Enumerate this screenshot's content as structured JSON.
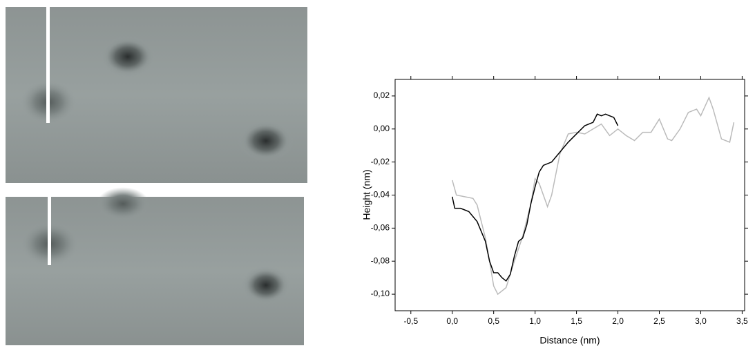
{
  "chart_data": {
    "type": "line",
    "xlabel": "Distance (nm)",
    "ylabel": "Height (nm)",
    "xlim": [
      -0.69,
      3.53
    ],
    "ylim": [
      -0.11,
      0.03
    ],
    "xticks": [
      {
        "value": -0.5,
        "label": "-0,5"
      },
      {
        "value": 0,
        "label": "0,0"
      },
      {
        "value": 0.5,
        "label": "0,5"
      },
      {
        "value": 1,
        "label": "1,0"
      },
      {
        "value": 1.5,
        "label": "1,5"
      },
      {
        "value": 2,
        "label": "2,0"
      },
      {
        "value": 2.5,
        "label": "2,5"
      },
      {
        "value": 3,
        "label": "3,0"
      },
      {
        "value": 3.5,
        "label": "3,5"
      }
    ],
    "yticks": [
      {
        "value": 0.02,
        "label": "0,02"
      },
      {
        "value": 0,
        "label": "0,00"
      },
      {
        "value": -0.02,
        "label": "-0,02"
      },
      {
        "value": -0.04,
        "label": "-0,04"
      },
      {
        "value": -0.06,
        "label": "-0,06"
      },
      {
        "value": -0.08,
        "label": "-0,08"
      },
      {
        "value": -0.1,
        "label": "-0,10"
      }
    ],
    "series": [
      {
        "color": "#bbbbbb",
        "x": [
          0,
          0.05,
          0.15,
          0.25,
          0.3,
          0.4,
          0.45,
          0.5,
          0.55,
          0.65,
          0.75,
          0.85,
          0.95,
          1.0,
          1.05,
          1.15,
          1.2,
          1.3,
          1.4,
          1.5,
          1.6,
          1.7,
          1.8,
          1.9,
          2.0,
          2.1,
          2.2,
          2.3,
          2.4,
          2.5,
          2.6,
          2.65,
          2.75,
          2.85,
          2.95,
          3.0,
          3.1,
          3.15,
          3.25,
          3.35,
          3.4
        ],
        "values": [
          -0.031,
          -0.04,
          -0.041,
          -0.042,
          -0.046,
          -0.066,
          -0.08,
          -0.095,
          -0.1,
          -0.096,
          -0.08,
          -0.065,
          -0.045,
          -0.03,
          -0.033,
          -0.047,
          -0.04,
          -0.015,
          -0.003,
          -0.002,
          -0.003,
          0.0,
          0.003,
          -0.004,
          0.0,
          -0.004,
          -0.007,
          -0.002,
          -0.002,
          0.006,
          -0.006,
          -0.007,
          0.0,
          0.01,
          0.012,
          0.008,
          0.019,
          0.012,
          -0.006,
          -0.008,
          0.004
        ]
      },
      {
        "color": "#000000",
        "x": [
          0,
          0.03,
          0.1,
          0.2,
          0.3,
          0.4,
          0.45,
          0.5,
          0.55,
          0.6,
          0.65,
          0.7,
          0.75,
          0.8,
          0.85,
          0.9,
          0.95,
          1.0,
          1.05,
          1.1,
          1.2,
          1.3,
          1.4,
          1.5,
          1.6,
          1.7,
          1.75,
          1.8,
          1.85,
          1.95,
          2.0
        ],
        "values": [
          -0.041,
          -0.048,
          -0.048,
          -0.05,
          -0.056,
          -0.068,
          -0.08,
          -0.087,
          -0.087,
          -0.09,
          -0.092,
          -0.088,
          -0.077,
          -0.068,
          -0.066,
          -0.058,
          -0.045,
          -0.035,
          -0.026,
          -0.022,
          -0.02,
          -0.014,
          -0.008,
          -0.003,
          0.002,
          0.004,
          0.009,
          0.008,
          0.009,
          0.007,
          0.002
        ]
      }
    ]
  }
}
